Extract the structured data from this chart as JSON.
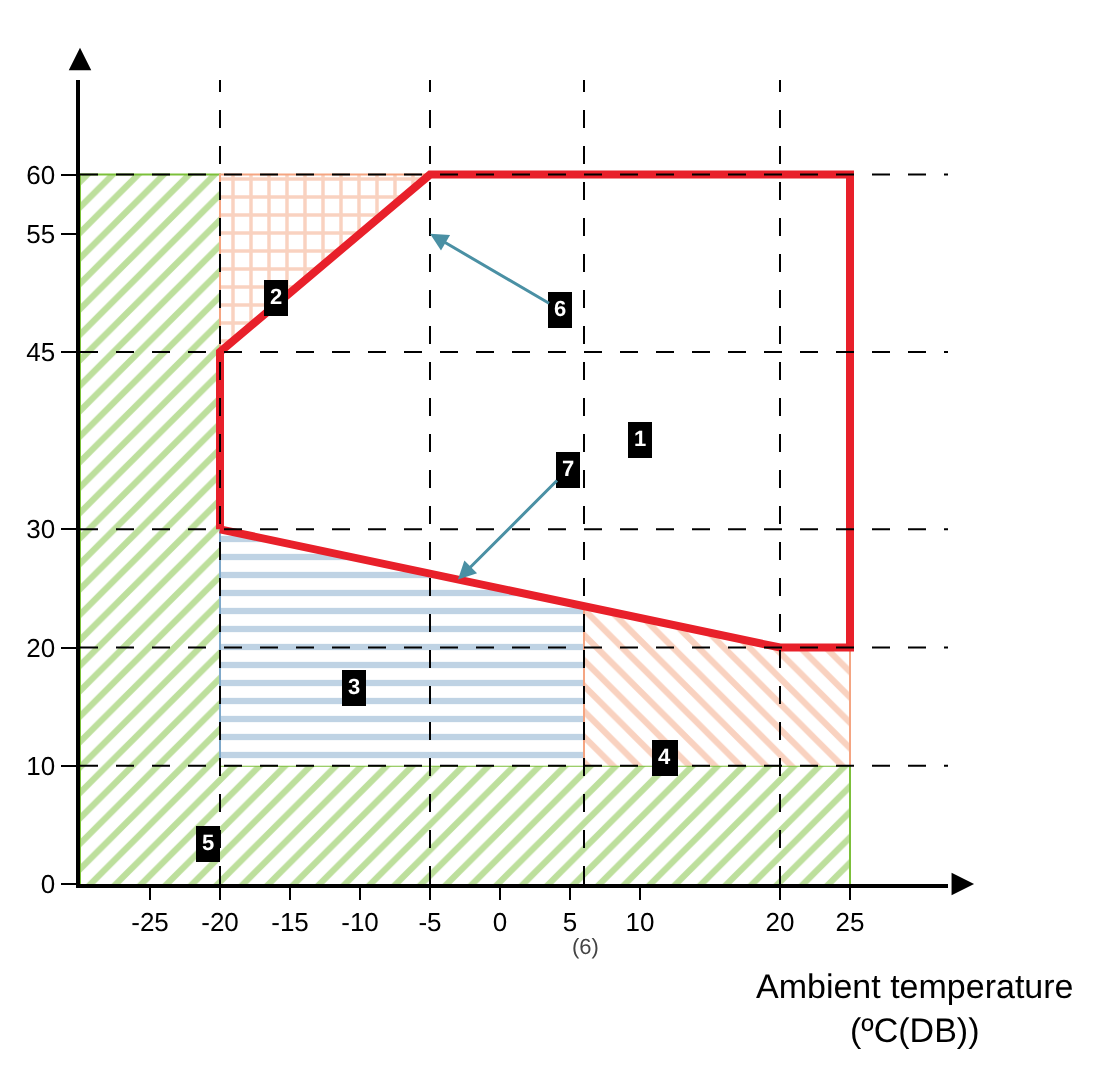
{
  "chart_data": {
    "type": "area",
    "xlabel": "Ambient temperature\n(ºC(DB))",
    "xlim": [
      -30,
      32
    ],
    "ylim": [
      0,
      68
    ],
    "xticks": [
      -25,
      -20,
      -15,
      -10,
      -5,
      0,
      5,
      10,
      20,
      25
    ],
    "yticks": [
      0,
      10,
      20,
      30,
      45,
      55,
      60
    ],
    "marker": "none",
    "series": [
      {
        "color": "#7cbf3a",
        "x": [
          -30,
          -30,
          -20,
          -20,
          25,
          25
        ],
        "values": [
          0,
          60,
          60,
          10,
          10,
          0
        ]
      },
      {
        "color": "#f4a582",
        "x": [
          -20,
          -20,
          -5
        ],
        "values": [
          45,
          60,
          60
        ]
      },
      {
        "color": "#7fa8c9",
        "x": [
          -20,
          -20,
          6,
          6
        ],
        "values": [
          10,
          30,
          23.5,
          10
        ]
      },
      {
        "color": "#f4a582",
        "x": [
          6,
          6,
          20,
          25,
          25
        ],
        "values": [
          10,
          23.5,
          20,
          20,
          10
        ]
      },
      {
        "color": "#e8202a",
        "line_style": "solid",
        "x": [
          -20,
          -20,
          -5,
          25,
          25,
          20,
          -20
        ],
        "values": [
          30,
          45,
          60,
          60,
          20,
          20,
          30
        ]
      }
    ],
    "ref_lines": [
      {
        "axis": "x",
        "value": -20,
        "color": "#000000",
        "line_style": "dashed"
      },
      {
        "axis": "x",
        "value": -5,
        "color": "#000000",
        "line_style": "dashed"
      },
      {
        "axis": "x",
        "value": 6,
        "label": "(6)",
        "color": "#000000",
        "line_style": "dashed"
      },
      {
        "axis": "x",
        "value": 20,
        "color": "#000000",
        "line_style": "dashed"
      },
      {
        "axis": "y",
        "value": 10,
        "color": "#000000",
        "line_style": "dashed"
      },
      {
        "axis": "y",
        "value": 20,
        "color": "#000000",
        "line_style": "dashed"
      },
      {
        "axis": "y",
        "value": 30,
        "color": "#000000",
        "line_style": "dashed"
      },
      {
        "axis": "y",
        "value": 45,
        "color": "#000000",
        "line_style": "dashed"
      },
      {
        "axis": "y",
        "value": 60,
        "color": "#000000",
        "line_style": "dashed"
      }
    ],
    "annotations": [
      {
        "text": "1",
        "x": 10,
        "y": 37.5
      },
      {
        "text": "2",
        "x": -16,
        "y": 49.5
      },
      {
        "text": "3",
        "x": -10.4,
        "y": 16.6
      },
      {
        "text": "4",
        "x": 11.8,
        "y": 10.6
      },
      {
        "text": "5",
        "x": -20.8,
        "y": 3.3
      },
      {
        "text": "6",
        "x": -5,
        "y": 55
      },
      {
        "text": "7",
        "x": -3,
        "y": 25.75
      }
    ]
  }
}
